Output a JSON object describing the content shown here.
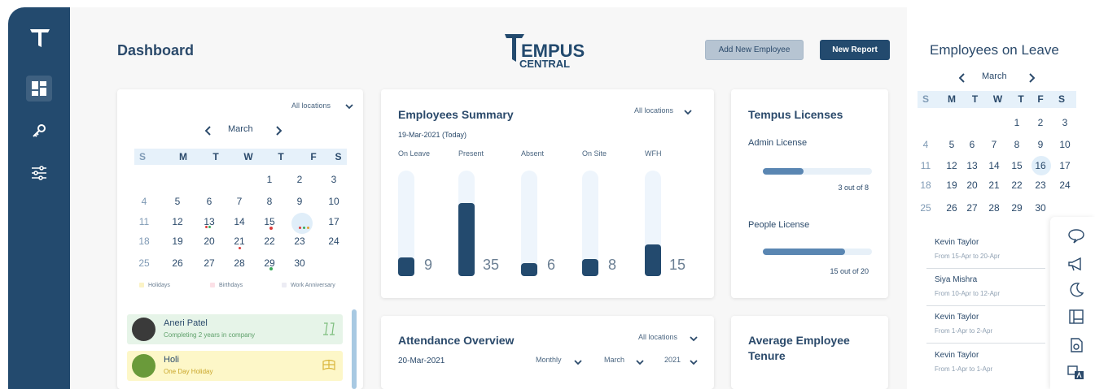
{
  "header": {
    "title": "Dashboard",
    "brand_top": "TEMPUS",
    "brand_bottom": "CENTRAL",
    "add_employee": "Add New Employee",
    "new_report": "New Report"
  },
  "calendar_card": {
    "location": "All locations",
    "month": "March",
    "weekdays": [
      "S",
      "M",
      "T",
      "W",
      "T",
      "F",
      "S"
    ],
    "weeks": [
      [
        "",
        "",
        "",
        "",
        "1",
        "2",
        "3"
      ],
      [
        "4",
        "5",
        "6",
        "7",
        "8",
        "9",
        "10"
      ],
      [
        "11",
        "12",
        "13",
        "14",
        "15",
        "16",
        "17"
      ],
      [
        "18",
        "19",
        "20",
        "21",
        "22",
        "23",
        "24"
      ],
      [
        "25",
        "26",
        "27",
        "28",
        "29",
        "30",
        ""
      ]
    ],
    "legend": [
      "Holidays",
      "Birthdays",
      "Work Anniversary"
    ],
    "events": [
      {
        "name": "Aneri Patel",
        "detail": "Completing 2 years in company"
      },
      {
        "name": "Holi",
        "detail": "One Day Holiday"
      }
    ]
  },
  "summary": {
    "title": "Employees Summary",
    "location": "All locations",
    "date": "19-Mar-2021 (Today)",
    "categories": [
      "On Leave",
      "Present",
      "Absent",
      "On Site",
      "WFH"
    ],
    "values": [
      9,
      35,
      6,
      8,
      15
    ]
  },
  "licenses": {
    "title": "Tempus Licenses",
    "admin_label": "Admin License",
    "admin_text": "3 out of 8",
    "admin_fraction": 0.375,
    "people_label": "People License",
    "people_text": "15 out of 20",
    "people_fraction": 0.75
  },
  "attendance": {
    "title": "Attendance Overview",
    "location": "All locations",
    "date": "20-Mar-2021",
    "period": "Monthly",
    "month": "March",
    "year": "2021"
  },
  "tenure": {
    "title_line1": "Average Employee",
    "title_line2": "Tenure"
  },
  "leave_panel": {
    "title": "Employees on Leave",
    "month": "March",
    "weekdays": [
      "S",
      "M",
      "T",
      "W",
      "T",
      "F",
      "S"
    ],
    "weeks": [
      [
        "",
        "",
        "",
        "",
        "1",
        "2",
        "3"
      ],
      [
        "4",
        "5",
        "6",
        "7",
        "8",
        "9",
        "10"
      ],
      [
        "11",
        "12",
        "13",
        "14",
        "15",
        "16",
        "17"
      ],
      [
        "18",
        "19",
        "20",
        "21",
        "22",
        "23",
        "24"
      ],
      [
        "25",
        "26",
        "27",
        "28",
        "29",
        "30",
        ""
      ]
    ],
    "items": [
      {
        "name": "Kevin Taylor",
        "range": "From 15-Apr to 20-Apr"
      },
      {
        "name": "Siya Mishra",
        "range": "From 10-Apr to 12-Apr"
      },
      {
        "name": "Kevin Taylor",
        "range": "From 1-Apr to 2-Apr"
      },
      {
        "name": "Kevin Taylor",
        "range": "From 1-Apr to 1-Apr"
      }
    ]
  }
}
